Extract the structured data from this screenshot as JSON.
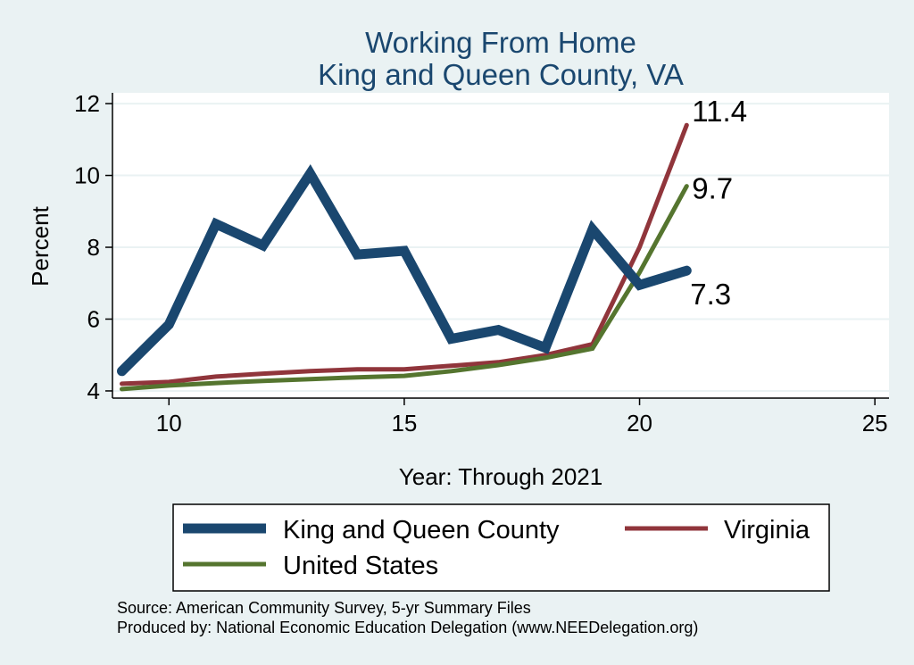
{
  "chart_data": {
    "type": "line",
    "title": [
      "Working From Home",
      "King and Queen County, VA"
    ],
    "xlabel": "Year: Through 2021",
    "ylabel": "Percent",
    "xlim": [
      8.8,
      25.3
    ],
    "ylim": [
      3.8,
      12.3
    ],
    "xticks": [
      10,
      15,
      20,
      25
    ],
    "yticks": [
      4,
      6,
      8,
      10,
      12
    ],
    "grid": true,
    "legend_position": "bottom",
    "series": [
      {
        "name": "King and Queen County",
        "color": "#1a476f",
        "x": [
          9,
          10,
          11,
          12,
          13,
          14,
          15,
          16,
          17,
          18,
          19,
          20,
          21
        ],
        "y": [
          4.55,
          5.85,
          8.65,
          8.05,
          10.05,
          7.8,
          7.9,
          5.45,
          5.7,
          5.2,
          8.5,
          6.95,
          7.35
        ],
        "end_label": "7.3"
      },
      {
        "name": "Virginia",
        "color": "#90353b",
        "x": [
          9,
          10,
          11,
          12,
          13,
          14,
          15,
          16,
          17,
          18,
          19,
          20,
          21
        ],
        "y": [
          4.2,
          4.25,
          4.4,
          4.48,
          4.55,
          4.6,
          4.6,
          4.7,
          4.8,
          5.0,
          5.3,
          8.0,
          11.4
        ],
        "end_label": "11.4"
      },
      {
        "name": "United States",
        "color": "#55752f",
        "x": [
          9,
          10,
          11,
          12,
          13,
          14,
          15,
          16,
          17,
          18,
          19,
          20,
          21
        ],
        "y": [
          4.05,
          4.15,
          4.22,
          4.28,
          4.33,
          4.38,
          4.42,
          4.55,
          4.72,
          4.92,
          5.18,
          7.3,
          9.7
        ],
        "end_label": "9.7"
      }
    ],
    "notes": [
      "Source: American Community Survey, 5-yr Summary Files",
      "Produced by: National Economic Education Delegation (www.NEEDelegation.org)"
    ]
  }
}
